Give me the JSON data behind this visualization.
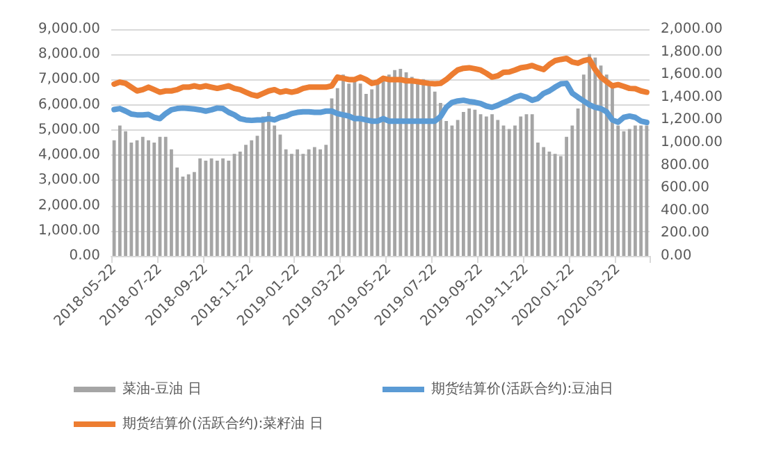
{
  "chart_data": {
    "type": "bar",
    "categories": [
      "2018-05-22",
      null,
      null,
      null,
      null,
      null,
      null,
      null,
      "2018-07-22",
      null,
      null,
      null,
      null,
      null,
      null,
      null,
      "2018-09-22",
      null,
      null,
      null,
      null,
      null,
      null,
      null,
      "2018-11-22",
      null,
      null,
      null,
      null,
      null,
      null,
      null,
      "2019-01-22",
      null,
      null,
      null,
      null,
      null,
      null,
      null,
      "2019-03-22",
      null,
      null,
      null,
      null,
      null,
      null,
      null,
      "2019-05-22",
      null,
      null,
      null,
      null,
      null,
      null,
      null,
      "2019-07-22",
      null,
      null,
      null,
      null,
      null,
      null,
      null,
      "2019-09-22",
      null,
      null,
      null,
      null,
      null,
      null,
      null,
      "2019-11-22",
      null,
      null,
      null,
      null,
      null,
      null,
      null,
      "2020-01-22",
      null,
      null,
      null,
      null,
      null,
      null,
      null,
      "2020-03-22",
      null,
      null,
      null,
      null,
      null
    ],
    "series": [
      {
        "name": "菜油-豆油 日",
        "axis": "y2",
        "color": "#a5a5a5",
        "values": [
          1020,
          1150,
          1100,
          1000,
          1020,
          1050,
          1020,
          1000,
          1050,
          1050,
          940,
          780,
          700,
          720,
          740,
          860,
          840,
          860,
          840,
          860,
          840,
          900,
          920,
          980,
          1020,
          1060,
          1230,
          1270,
          1150,
          1070,
          940,
          900,
          940,
          900,
          940,
          960,
          940,
          980,
          1390,
          1480,
          1600,
          1520,
          1540,
          1520,
          1430,
          1470,
          1520,
          1560,
          1600,
          1640,
          1650,
          1620,
          1580,
          1560,
          1560,
          1520,
          1450,
          1350,
          1190,
          1150,
          1200,
          1270,
          1300,
          1290,
          1250,
          1230,
          1250,
          1200,
          1150,
          1120,
          1150,
          1230,
          1250,
          1250,
          1000,
          960,
          920,
          900,
          880,
          1050,
          1150,
          1300,
          1600,
          1780,
          1750,
          1680,
          1600,
          1520,
          1150,
          1100,
          1120,
          1150,
          1150,
          1150
        ]
      },
      {
        "name": "期货结算价(活跃合约):豆油日",
        "type": "line",
        "color": "#5b9bd5",
        "values": [
          5810,
          5850,
          5750,
          5630,
          5600,
          5600,
          5620,
          5500,
          5450,
          5650,
          5800,
          5850,
          5870,
          5850,
          5830,
          5800,
          5750,
          5800,
          5870,
          5850,
          5700,
          5600,
          5450,
          5400,
          5380,
          5400,
          5400,
          5450,
          5400,
          5500,
          5550,
          5650,
          5700,
          5720,
          5720,
          5700,
          5700,
          5750,
          5750,
          5650,
          5600,
          5550,
          5450,
          5450,
          5400,
          5350,
          5350,
          5450,
          5350,
          5350,
          5350,
          5350,
          5350,
          5350,
          5350,
          5350,
          5350,
          5530,
          5900,
          6090,
          6150,
          6180,
          6130,
          6100,
          6050,
          5950,
          5900,
          5980,
          6090,
          6180,
          6300,
          6370,
          6300,
          6180,
          6250,
          6450,
          6550,
          6700,
          6830,
          6850,
          6460,
          6300,
          6150,
          6000,
          5900,
          5850,
          5720,
          5400,
          5310,
          5500,
          5550,
          5500,
          5350,
          5300
        ]
      },
      {
        "name": "期货结算价(活跃合约):菜籽油 日",
        "type": "line",
        "color": "#ed7d31",
        "values": [
          6820,
          6900,
          6850,
          6700,
          6550,
          6600,
          6700,
          6600,
          6500,
          6550,
          6550,
          6600,
          6700,
          6700,
          6750,
          6700,
          6750,
          6700,
          6650,
          6700,
          6750,
          6650,
          6600,
          6500,
          6400,
          6350,
          6450,
          6550,
          6600,
          6500,
          6550,
          6500,
          6550,
          6650,
          6700,
          6700,
          6700,
          6700,
          6750,
          7100,
          7050,
          7000,
          7000,
          7100,
          7000,
          6850,
          6900,
          7050,
          7000,
          7000,
          7000,
          6950,
          6950,
          6920,
          6880,
          6850,
          6830,
          6850,
          7000,
          7200,
          7380,
          7450,
          7470,
          7430,
          7380,
          7250,
          7100,
          7150,
          7290,
          7300,
          7380,
          7470,
          7500,
          7560,
          7470,
          7400,
          7600,
          7750,
          7800,
          7840,
          7700,
          7650,
          7750,
          7800,
          7400,
          7100,
          6920,
          6750,
          6800,
          6730,
          6650,
          6640,
          6550,
          6500
        ]
      }
    ],
    "ylim": [
      0,
      9000
    ],
    "yticks": [
      {
        "value": 0,
        "label": "0.00"
      },
      {
        "value": 1000,
        "label": "1,000.00"
      },
      {
        "value": 2000,
        "label": "2,000.00"
      },
      {
        "value": 3000,
        "label": "3,000.00"
      },
      {
        "value": 4000,
        "label": "4,000.00"
      },
      {
        "value": 5000,
        "label": "5,000.00"
      },
      {
        "value": 6000,
        "label": "6,000.00"
      },
      {
        "value": 7000,
        "label": "7,000.00"
      },
      {
        "value": 8000,
        "label": "8,000.00"
      },
      {
        "value": 9000,
        "label": "9,000.00"
      }
    ],
    "y2lim": [
      0,
      2000
    ],
    "y2ticks": [
      {
        "value": 0,
        "label": "0.00"
      },
      {
        "value": 200,
        "label": "200.00"
      },
      {
        "value": 400,
        "label": "400.00"
      },
      {
        "value": 600,
        "label": "600.00"
      },
      {
        "value": 800,
        "label": "800.00"
      },
      {
        "value": 1000,
        "label": "1,000.00"
      },
      {
        "value": 1200,
        "label": "1,200.00"
      },
      {
        "value": 1400,
        "label": "1,400.00"
      },
      {
        "value": 1600,
        "label": "1,600.00"
      },
      {
        "value": 1800,
        "label": "1,800.00"
      },
      {
        "value": 2000,
        "label": "2,000.00"
      }
    ],
    "grid": "y",
    "legend": "bottom",
    "marker": "none",
    "line_style": "solid"
  }
}
